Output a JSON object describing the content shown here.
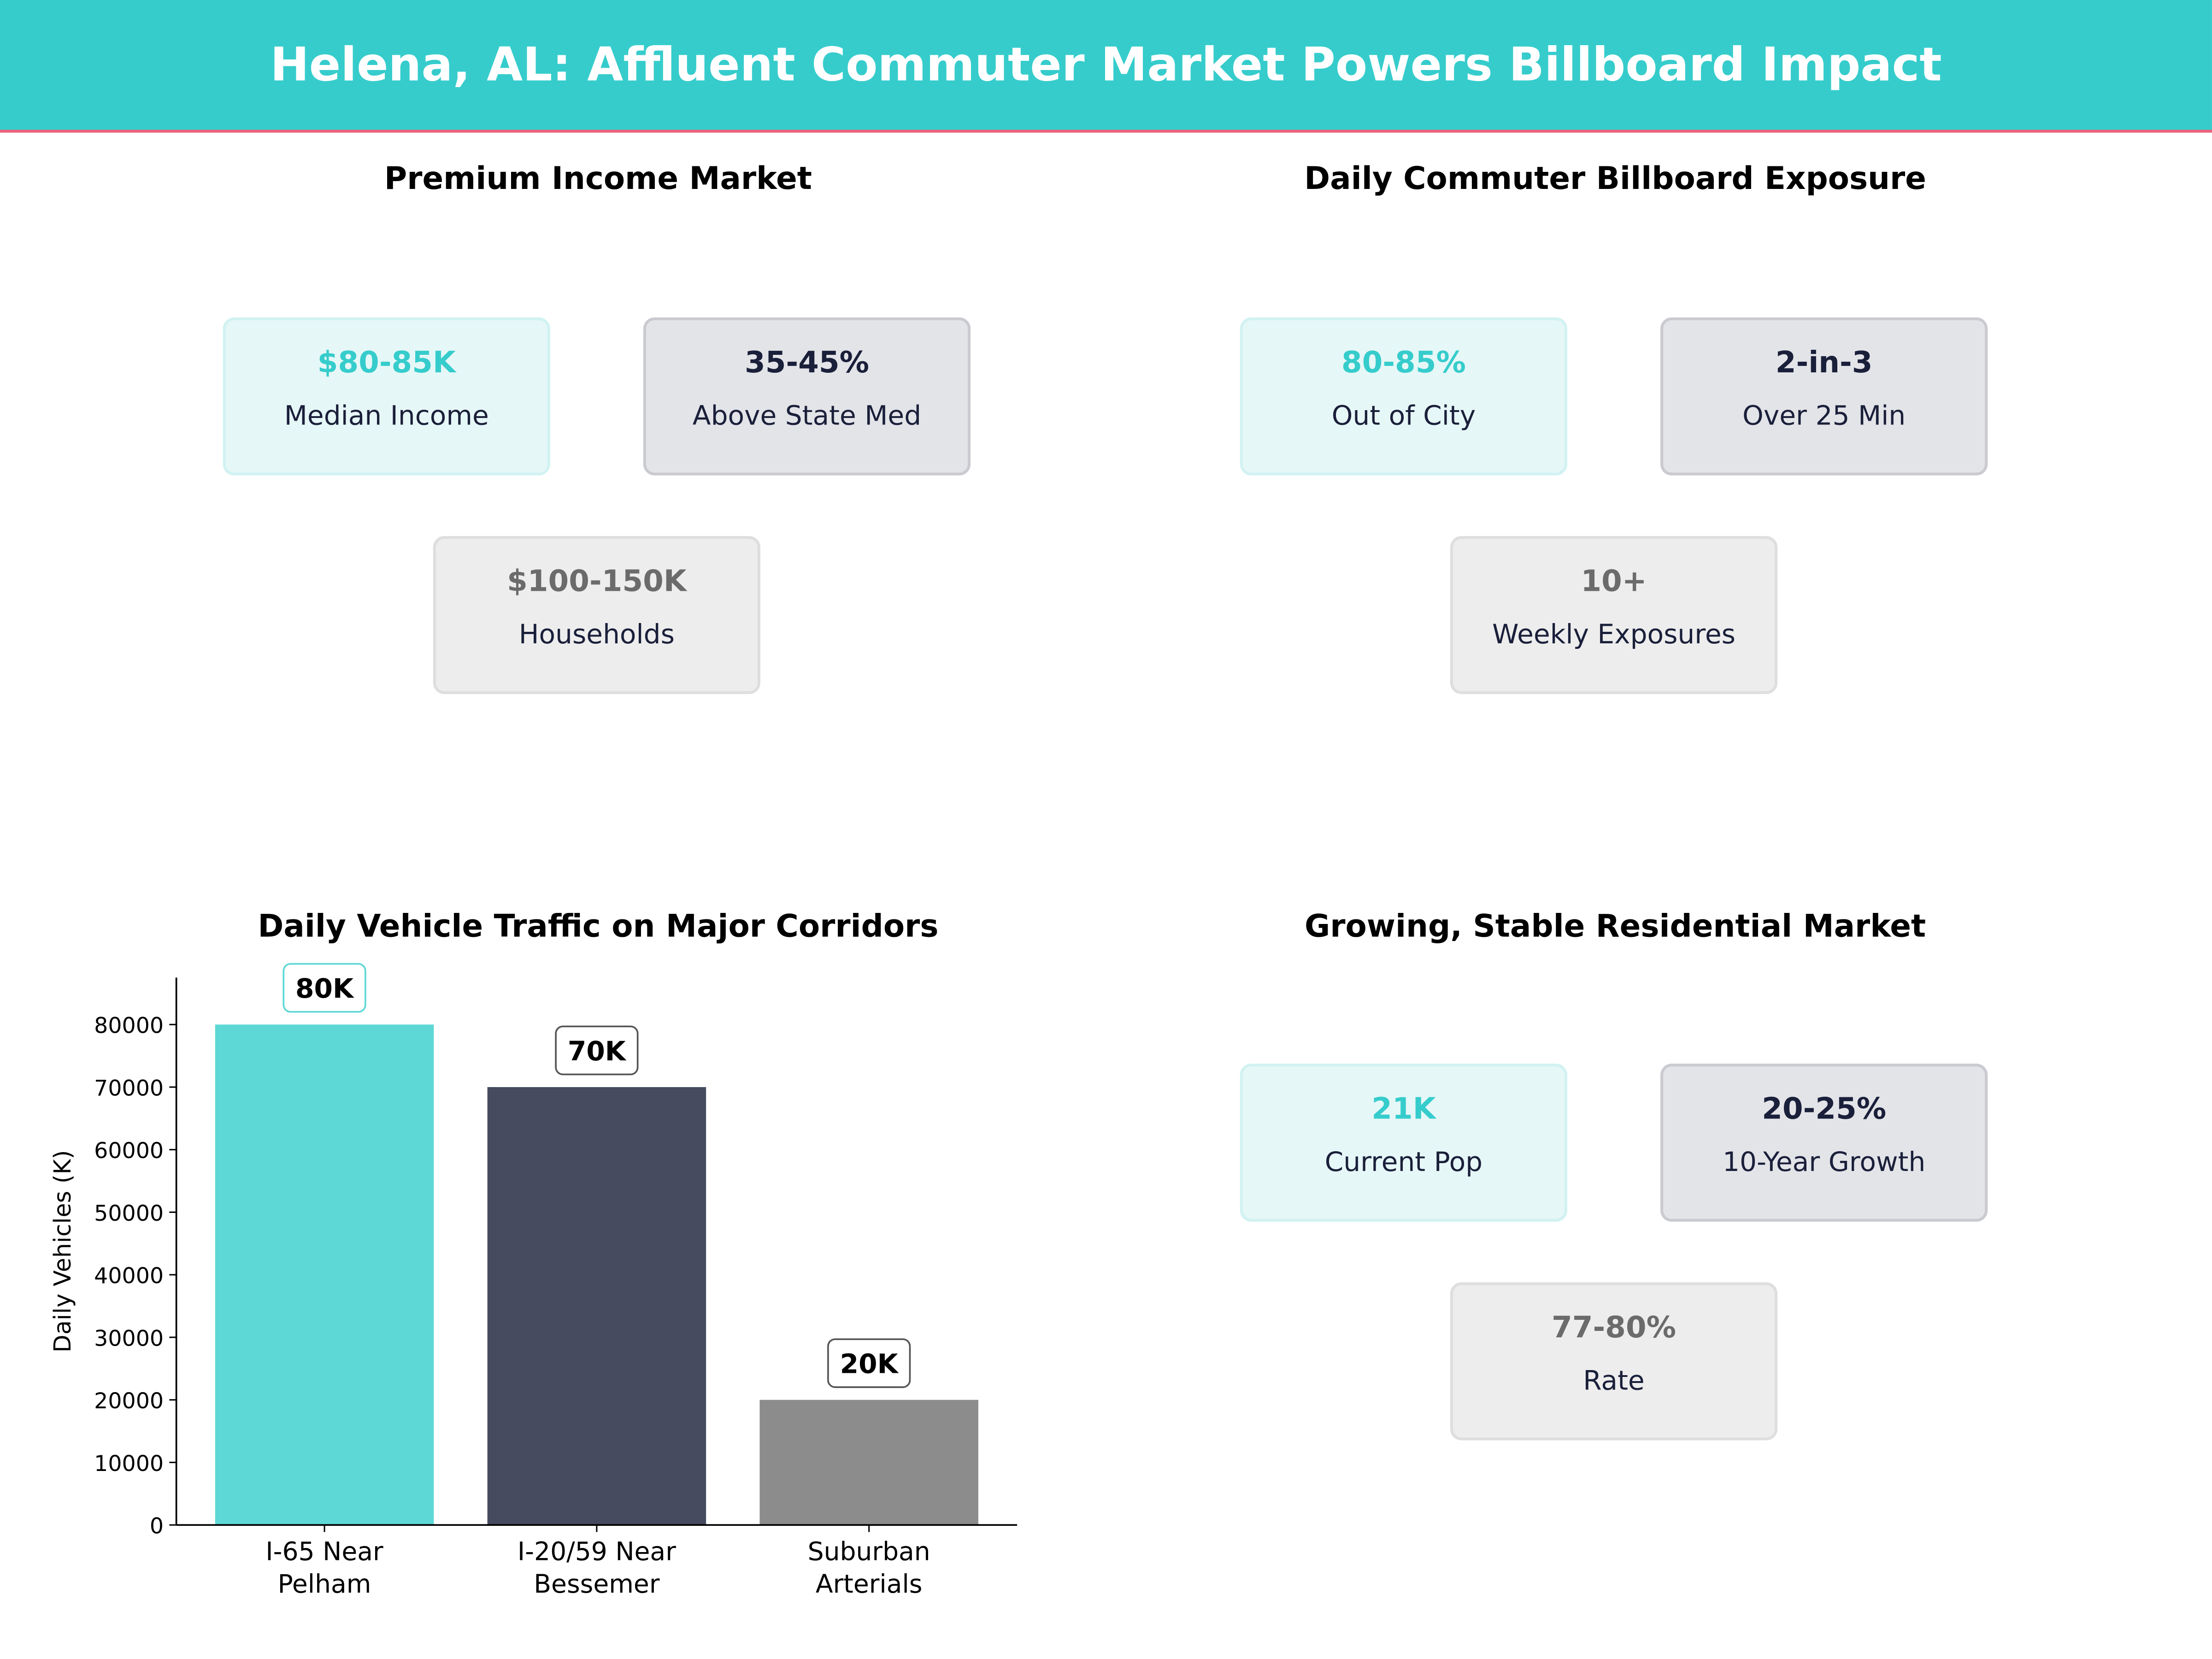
{
  "title": "Helena, AL: Affluent Commuter Market Powers Billboard Impact",
  "colors": {
    "header": "#36CCCC",
    "accent_line": "#EF6079",
    "teal": "#5DD8D6",
    "navy": "#464B60",
    "gray": "#8C8C8C"
  },
  "panels": [
    {
      "title": "Premium Income Market",
      "cards": [
        {
          "value": "$80-85K",
          "label": "Median Income",
          "style": "teal"
        },
        {
          "value": "35-45%",
          "label": "Above State Med",
          "style": "dark"
        },
        {
          "value": "$100-150K",
          "label": "Households",
          "style": "gray"
        }
      ]
    },
    {
      "title": "Daily Commuter Billboard Exposure",
      "cards": [
        {
          "value": "80-85%",
          "label": "Out of City",
          "style": "teal"
        },
        {
          "value": "2-in-3",
          "label": "Over 25 Min",
          "style": "dark"
        },
        {
          "value": "10+",
          "label": "Weekly Exposures",
          "style": "gray"
        }
      ]
    },
    {
      "title": "Growing, Stable Residential Market",
      "cards": [
        {
          "value": "21K",
          "label": "Current Pop",
          "style": "teal"
        },
        {
          "value": "20-25%",
          "label": "10-Year Growth",
          "style": "dark"
        },
        {
          "value": "77-80%",
          "label": "Rate",
          "style": "gray"
        }
      ]
    }
  ],
  "chart_data": {
    "type": "bar",
    "title": "Daily Vehicle Traffic on Major Corridors",
    "categories": [
      [
        "I-65 Near",
        "Pelham"
      ],
      [
        "I-20/59 Near",
        "Bessemer"
      ],
      [
        "Suburban",
        "Arterials"
      ]
    ],
    "values": [
      80000,
      70000,
      20000
    ],
    "data_labels": [
      "80K",
      "70K",
      "20K"
    ],
    "bar_colors": [
      "#5DD8D6",
      "#464B60",
      "#8C8C8C"
    ],
    "ylabel": "Daily Vehicles (K)",
    "xlabel": "",
    "ylim": [
      0,
      87500
    ],
    "yticks": [
      0,
      10000,
      20000,
      30000,
      40000,
      50000,
      60000,
      70000,
      80000
    ],
    "grid": false
  }
}
